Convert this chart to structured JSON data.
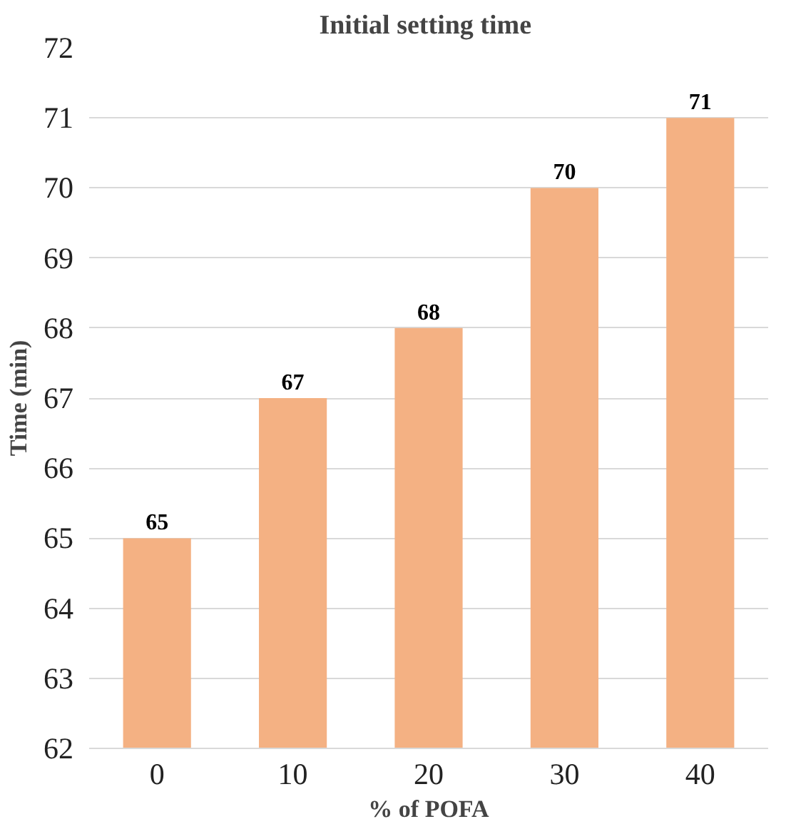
{
  "chart_data": {
    "type": "bar",
    "title": "Initial setting  time",
    "xlabel": "% of POFA",
    "ylabel": "Time (min)",
    "categories": [
      "0",
      "10",
      "20",
      "30",
      "40"
    ],
    "values": [
      65,
      67,
      68,
      70,
      71
    ],
    "color": "#f4b183",
    "ylim": [
      62,
      72
    ],
    "yticks": [
      62,
      63,
      64,
      65,
      66,
      67,
      68,
      69,
      70,
      71,
      72
    ],
    "grid": "y",
    "data_labels": true
  }
}
